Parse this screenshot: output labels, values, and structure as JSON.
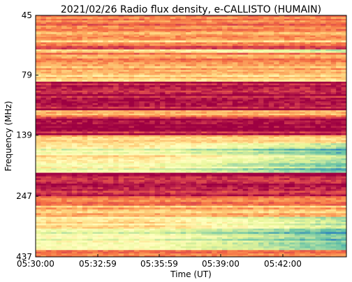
{
  "chart_data": {
    "type": "heatmap",
    "title": "2021/02/26  Radio flux density, e-CALLISTO (HUMAIN)",
    "xlabel": "Time (UT)",
    "ylabel": "Frequency (MHz)",
    "x_ticks": [
      "05:30:00",
      "05:32:59",
      "05:35:59",
      "05:39:00",
      "05:42:00"
    ],
    "y_ticks": [
      "45",
      "79",
      "139",
      "247",
      "437"
    ],
    "y_scale": "log",
    "y_range_mhz": [
      45,
      437
    ],
    "y_inverted": true,
    "colormap": "Spectral_r",
    "colormap_stops": [
      "#9e0142",
      "#d53e4f",
      "#f46d43",
      "#fdae61",
      "#fee08b",
      "#ffffbf",
      "#e6f598",
      "#abdda4",
      "#66c2a5",
      "#3288bd"
    ],
    "grid": false,
    "bands": [
      {
        "freq_mhz": [
          45,
          48
        ],
        "level": 0.3
      },
      {
        "freq_mhz": [
          48,
          52
        ],
        "level": 0.22
      },
      {
        "freq_mhz": [
          52,
          56
        ],
        "level": 0.32
      },
      {
        "freq_mhz": [
          56,
          58
        ],
        "level": 0.4
      },
      {
        "freq_mhz": [
          58,
          62
        ],
        "level": 0.2
      },
      {
        "freq_mhz": [
          62,
          64
        ],
        "level": 0.45
      },
      {
        "freq_mhz": [
          64,
          70
        ],
        "level": 0.28
      },
      {
        "freq_mhz": [
          70,
          74
        ],
        "level": 0.36
      },
      {
        "freq_mhz": [
          74,
          79
        ],
        "level": 0.3
      },
      {
        "freq_mhz": [
          79,
          84
        ],
        "level": 0.4
      },
      {
        "freq_mhz": [
          84,
          110
        ],
        "level": 0.05
      },
      {
        "freq_mhz": [
          110,
          117
        ],
        "level": 0.32
      },
      {
        "freq_mhz": [
          117,
          139
        ],
        "level": 0.05
      },
      {
        "freq_mhz": [
          139,
          150
        ],
        "level": 0.38
      },
      {
        "freq_mhz": [
          150,
          158
        ],
        "level": 0.55
      },
      {
        "freq_mhz": [
          158,
          168
        ],
        "level": 0.62
      },
      {
        "freq_mhz": [
          168,
          178
        ],
        "level": 0.45
      },
      {
        "freq_mhz": [
          178,
          190
        ],
        "level": 0.52
      },
      {
        "freq_mhz": [
          190,
          198
        ],
        "level": 0.6
      },
      {
        "freq_mhz": [
          198,
          247
        ],
        "level": 0.06
      },
      {
        "freq_mhz": [
          247,
          270
        ],
        "level": 0.28
      },
      {
        "freq_mhz": [
          270,
          300
        ],
        "level": 0.36
      },
      {
        "freq_mhz": [
          300,
          335
        ],
        "level": 0.48
      },
      {
        "freq_mhz": [
          335,
          375
        ],
        "level": 0.62
      },
      {
        "freq_mhz": [
          375,
          410
        ],
        "level": 0.52
      },
      {
        "freq_mhz": [
          410,
          437
        ],
        "level": 0.3
      }
    ]
  }
}
